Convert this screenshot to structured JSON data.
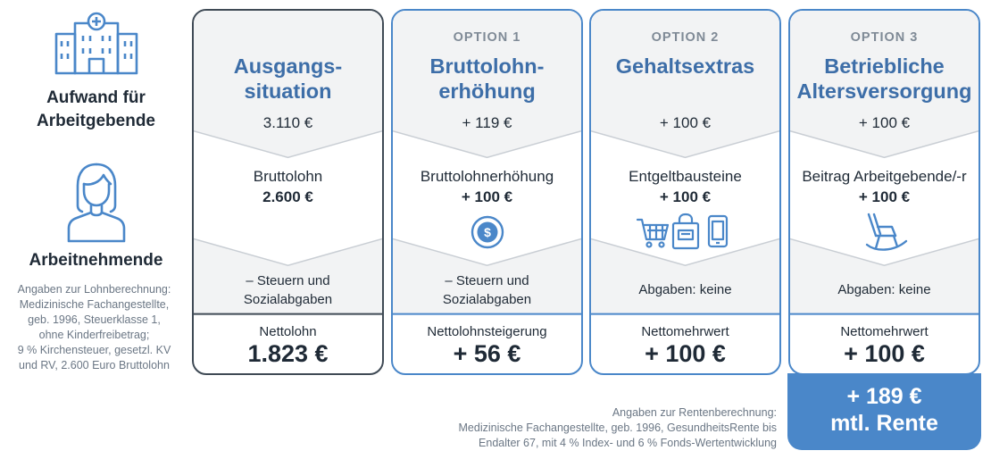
{
  "left": {
    "employer_label": [
      "Aufwand für",
      "Arbeitgebende"
    ],
    "employee_label": "Arbeitnehmende",
    "note_lines": [
      "Angaben zur Lohnberechnung:",
      "Medizinische Fachangestellte,",
      "geb. 1996, Steuerklasse 1,",
      "ohne Kinderfreibetrag;",
      "9 % Kirchensteuer, gesetzl. KV",
      "und RV, 2.600 Euro Bruttolohn"
    ]
  },
  "cards": [
    {
      "option": "",
      "title": [
        "Ausgangs-",
        "situation"
      ],
      "cost": "3.110 €",
      "mid_label": "Bruttolohn",
      "mid_value": "2.600 €",
      "deduction": [
        "– Steuern und",
        "Sozialabgaben"
      ],
      "net_label": "Nettolohn",
      "net_value": "1.823 €",
      "icon": ""
    },
    {
      "option": "OPTION 1",
      "title": [
        "Bruttolohn-",
        "erhöhung"
      ],
      "cost": "+ 119 €",
      "mid_label": "Bruttolohnerhöhung",
      "mid_value": "+ 100 €",
      "deduction": [
        "– Steuern und",
        "Sozialabgaben"
      ],
      "net_label": "Nettolohnsteigerung",
      "net_value": "+ 56 €",
      "icon": "coin-icon"
    },
    {
      "option": "OPTION 2",
      "title": [
        "Gehaltsextras"
      ],
      "cost": "+ 100 €",
      "mid_label": "Entgeltbausteine",
      "mid_value": "+ 100 €",
      "deduction": [
        "Abgaben: keine"
      ],
      "net_label": "Nettomehrwert",
      "net_value": "+ 100 €",
      "icon": "shopping-icons"
    },
    {
      "option": "OPTION 3",
      "title": [
        "Betriebliche",
        "Altersversorgung"
      ],
      "cost": "+ 100 €",
      "mid_label": "Beitrag Arbeitgebende/-r",
      "mid_value": "+ 100 €",
      "deduction": [
        "Abgaben: keine"
      ],
      "net_label": "Nettomehrwert",
      "net_value": "+ 100 €",
      "icon": "rocking-chair-icon"
    }
  ],
  "rente": {
    "line1": "+ 189 €",
    "line2": "mtl. Rente"
  },
  "rente_note": [
    "Angaben zur Rentenberechnung:",
    "Medizinische Fachangestellte, geb. 1996, GesundheitsRente bis",
    "Endalter 67, mit 4 % Index- und 6 % Fonds-Wertentwicklung"
  ],
  "colors": {
    "accent": "#4a87c9",
    "title": "#3d6ea8",
    "band": "#f2f3f4",
    "dark_border": "#3f4a55"
  }
}
